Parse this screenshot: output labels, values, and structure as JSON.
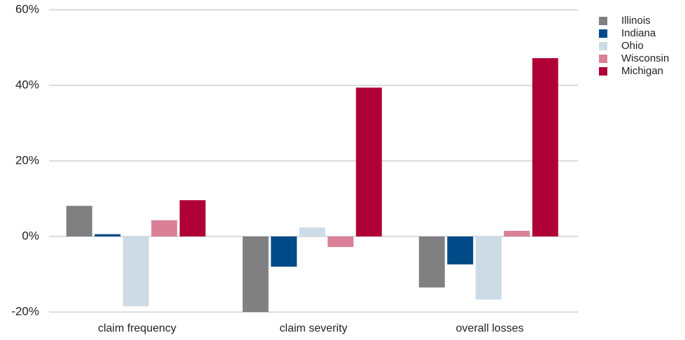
{
  "chart_data": {
    "type": "bar",
    "categories": [
      "claim frequency",
      "claim severity",
      "overall losses"
    ],
    "series": [
      {
        "name": "Illinois",
        "color": "#808083",
        "values": [
          8.1,
          -20,
          -13.5
        ]
      },
      {
        "name": "Indiana",
        "color": "#004a87",
        "values": [
          0.6,
          -8.0,
          -7.4
        ]
      },
      {
        "name": "Ohio",
        "color": "#cddbe6",
        "values": [
          -18.5,
          2.4,
          -16.7
        ]
      },
      {
        "name": "Wisconsin",
        "color": "#d98098",
        "values": [
          4.3,
          -2.8,
          1.5
        ]
      },
      {
        "name": "Michigan",
        "color": "#ae0036",
        "values": [
          9.6,
          39.4,
          47.2
        ]
      }
    ],
    "ylim": [
      -20,
      60
    ],
    "yticks": [
      {
        "value": -20,
        "label": "-20%"
      },
      {
        "value": 0,
        "label": "0%"
      },
      {
        "value": 20,
        "label": "20%"
      },
      {
        "value": 40,
        "label": "40%"
      },
      {
        "value": 60,
        "label": "60%"
      }
    ],
    "grid": true,
    "legend": "right"
  }
}
